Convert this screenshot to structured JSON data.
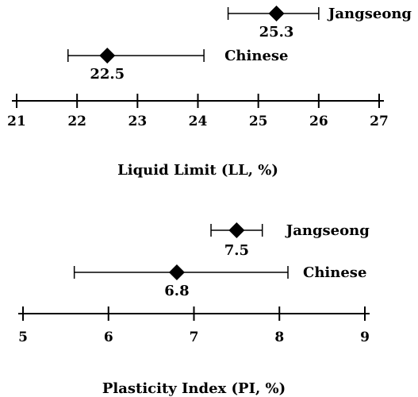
{
  "chart_data": [
    {
      "type": "scatter",
      "xlabel": "Liquid Limit (LL, %)",
      "ticks": [
        21,
        22,
        23,
        24,
        25,
        26,
        27
      ],
      "xlim": [
        21,
        27
      ],
      "series": [
        {
          "name": "Jangseong",
          "value": 25.3,
          "value_label": "25.3",
          "low": 24.5,
          "high": 26.0
        },
        {
          "name": "Chinese",
          "value": 22.5,
          "value_label": "22.5",
          "low": 21.85,
          "high": 24.1
        }
      ]
    },
    {
      "type": "scatter",
      "xlabel": "Plasticity Index (PI, %)",
      "ticks": [
        5,
        6,
        7,
        8,
        9
      ],
      "xlim": [
        5,
        9
      ],
      "series": [
        {
          "name": "Jangseong",
          "value": 7.5,
          "value_label": "7.5",
          "low": 7.2,
          "high": 7.8
        },
        {
          "name": "Chinese",
          "value": 6.8,
          "value_label": "6.8",
          "low": 5.6,
          "high": 8.1
        }
      ]
    }
  ]
}
